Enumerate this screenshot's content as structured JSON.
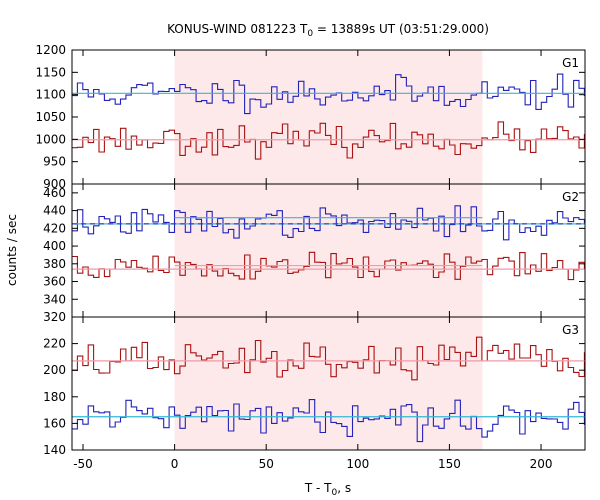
{
  "chart_data": {
    "type": "line",
    "title": "KONUS-WIND 081223 T",
    "title_sub": "0",
    "title_rest": " = 13889s UT (03:51:29.000)",
    "xlabel": "T - T",
    "xlabel_sub": "0",
    "xlabel_rest": ", s",
    "ylabel": "counts / sec",
    "xlim": [
      -56,
      224
    ],
    "x_ticks": [
      -50,
      0,
      50,
      100,
      150,
      200
    ],
    "x_tick_labels": [
      "-50",
      "0",
      "50",
      "100",
      "150",
      "200"
    ],
    "bin_width": 2.944,
    "shaded_interval": [
      0,
      168
    ],
    "colors": {
      "blue_series": "#2222bb",
      "red_series": "#aa1111",
      "blue_fit": "#33b8d6",
      "red_fit": "#f29aa8",
      "shade": "#fde9ea"
    },
    "panels": [
      {
        "label": "G1",
        "ylim": [
          900,
          1200
        ],
        "y_ticks": [
          900,
          950,
          1000,
          1050,
          1100,
          1150,
          1200
        ],
        "series": [
          {
            "color_key": "blue",
            "mean": 1103,
            "fit_level": 1103,
            "dashed_fit": false,
            "noise": 18,
            "seed": 11
          },
          {
            "color_key": "red",
            "mean": 999,
            "fit_level": 999,
            "dashed_fit": false,
            "noise": 16,
            "seed": 23
          }
        ]
      },
      {
        "label": "G2",
        "ylim": [
          320,
          470
        ],
        "y_ticks": [
          320,
          340,
          360,
          380,
          400,
          420,
          440,
          460
        ],
        "series": [
          {
            "color_key": "blue",
            "mean": 426,
            "fit_level": 425,
            "bump_level": 432,
            "dashed_fit": true,
            "noise": 8,
            "seed": 37
          },
          {
            "color_key": "red",
            "mean": 376,
            "fit_level": 374,
            "bump_level": 378,
            "dashed_fit": false,
            "noise": 9,
            "seed": 51
          }
        ]
      },
      {
        "label": "G3",
        "ylim": [
          140,
          240
        ],
        "y_ticks": [
          140,
          160,
          180,
          200,
          220
        ],
        "series": [
          {
            "color_key": "red",
            "mean": 207,
            "fit_level": 207,
            "dashed_fit": false,
            "noise": 7,
            "seed": 67
          },
          {
            "color_key": "blue",
            "mean": 165,
            "fit_level": 165,
            "dashed_fit": false,
            "noise": 6,
            "seed": 79
          }
        ]
      }
    ]
  }
}
